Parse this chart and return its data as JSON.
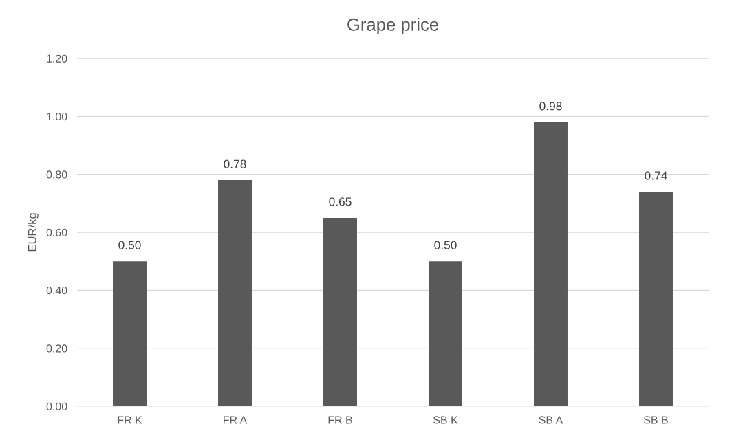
{
  "chart_data": {
    "type": "bar",
    "title": "Grape price",
    "ylabel": "EUR/kg",
    "categories": [
      "FR K",
      "FR A",
      "FR B",
      "SB K",
      "SB A",
      "SB B"
    ],
    "values": [
      0.5,
      0.78,
      0.65,
      0.5,
      0.98,
      0.74
    ],
    "value_labels": [
      "0.50",
      "0.78",
      "0.65",
      "0.50",
      "0.98",
      "0.74"
    ],
    "color": "#595959",
    "ylim": [
      0,
      1.2
    ],
    "yticks": [
      {
        "value": 0,
        "label": "0.00"
      },
      {
        "value": 0.2,
        "label": "0.20"
      },
      {
        "value": 0.4,
        "label": "0.40"
      },
      {
        "value": 0.6,
        "label": "0.60"
      },
      {
        "value": 0.8,
        "label": "0.80"
      },
      {
        "value": 1.0,
        "label": "1.00"
      },
      {
        "value": 1.2,
        "label": "1.20"
      }
    ],
    "grid": "y"
  }
}
